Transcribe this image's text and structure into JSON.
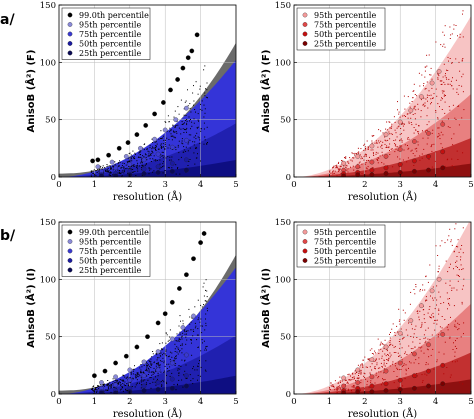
{
  "figure": {
    "row_labels": [
      "a/",
      "b/"
    ]
  },
  "chart_data": [
    {
      "id": "a-left",
      "type": "scatter",
      "title": "",
      "xlabel": "resolution (Å)",
      "ylabel": "AnisoB (Å²) (F)",
      "xlim": [
        0,
        5
      ],
      "ylim": [
        0,
        150
      ],
      "xticks": [
        0,
        1,
        2,
        3,
        4,
        5
      ],
      "yticks": [
        0,
        50,
        100,
        150
      ],
      "grid": true,
      "legend_position": "top-left",
      "background_color": "#ffffff",
      "scatter_cloud": {
        "color": "#000000",
        "x_range": [
          0.9,
          4.2
        ],
        "spread": 0.55,
        "curve": [
          3,
          2.6,
          2.35
        ]
      },
      "bands": [
        {
          "color": "#6b6b6b",
          "curve": [
            3,
            2.6,
            2.35
          ]
        },
        {
          "color": "#3434d8",
          "curve": [
            0,
            4.8,
            1.9
          ]
        },
        {
          "color": "#2020b0",
          "curve": [
            0,
            2.2,
            1.9
          ]
        },
        {
          "color": "#0e0e82",
          "curve": [
            0,
            0.7,
            1.9
          ]
        }
      ],
      "series": [
        {
          "name": "99.0th percentile",
          "color": "#000000",
          "points": [
            [
              0.95,
              14
            ],
            [
              1.1,
              15
            ],
            [
              1.4,
              19
            ],
            [
              1.7,
              25
            ],
            [
              1.95,
              30
            ],
            [
              2.2,
              37
            ],
            [
              2.45,
              45
            ],
            [
              2.7,
              55
            ],
            [
              2.95,
              65
            ],
            [
              3.15,
              76
            ],
            [
              3.35,
              85
            ],
            [
              3.5,
              95
            ],
            [
              3.65,
              104
            ],
            [
              3.75,
              110
            ],
            [
              3.9,
              124
            ]
          ]
        },
        {
          "name": "95th percentile",
          "color": "#8a8ad8",
          "points": [
            [
              1.1,
              9
            ],
            [
              1.5,
              13
            ],
            [
              1.9,
              18
            ],
            [
              2.3,
              25
            ],
            [
              2.7,
              33
            ],
            [
              3.0,
              41
            ],
            [
              3.3,
              50
            ],
            [
              3.6,
              60
            ]
          ]
        },
        {
          "name": "75th percentile",
          "color": "#3a3ad0",
          "points": [
            [
              1.2,
              5
            ],
            [
              1.6,
              8
            ],
            [
              2.0,
              11
            ],
            [
              2.4,
              15
            ],
            [
              2.8,
              20
            ],
            [
              3.2,
              26
            ],
            [
              3.6,
              32
            ]
          ]
        },
        {
          "name": "50th percentile",
          "color": "#1a1aa0",
          "points": [
            [
              1.2,
              2
            ],
            [
              1.6,
              3
            ],
            [
              2.0,
              5
            ],
            [
              2.4,
              7
            ],
            [
              2.8,
              9
            ],
            [
              3.2,
              12
            ],
            [
              3.6,
              15
            ]
          ]
        },
        {
          "name": "25th percentile",
          "color": "#0a0a55",
          "points": [
            [
              1.2,
              1
            ],
            [
              1.6,
              1
            ],
            [
              2.0,
              2
            ],
            [
              2.4,
              3
            ],
            [
              2.8,
              4
            ],
            [
              3.2,
              5
            ],
            [
              3.6,
              6
            ]
          ]
        }
      ]
    },
    {
      "id": "a-right",
      "type": "scatter",
      "title": "",
      "xlabel": "resolution (Å)",
      "ylabel": "AnisoB (Å²) (F)",
      "xlim": [
        0,
        5
      ],
      "ylim": [
        0,
        150
      ],
      "xticks": [
        0,
        1,
        2,
        3,
        4,
        5
      ],
      "yticks": [
        0,
        50,
        100,
        150
      ],
      "grid": true,
      "legend_position": "top-left",
      "background_color": "#ffffff",
      "scatter_cloud": {
        "color": "#b30000",
        "x_range": [
          1.0,
          4.8
        ],
        "spread": 0.5,
        "curve": [
          0,
          6.6,
          1.9
        ]
      },
      "bands": [
        {
          "color": "#f7c4c4",
          "curve": [
            0,
            6.6,
            1.9
          ]
        },
        {
          "color": "#e88080",
          "curve": [
            0,
            3.4,
            1.9
          ]
        },
        {
          "color": "#c23030",
          "curve": [
            0,
            1.6,
            1.9
          ]
        },
        {
          "color": "#8e1010",
          "curve": [
            0,
            0.55,
            1.9
          ]
        }
      ],
      "series": [
        {
          "name": "95th percentile",
          "color": "#f49a9a",
          "points": [
            [
              1.4,
              12
            ],
            [
              1.8,
              18
            ],
            [
              2.2,
              27
            ],
            [
              2.6,
              37
            ],
            [
              3.0,
              48
            ],
            [
              3.3,
              58
            ],
            [
              3.6,
              70
            ],
            [
              3.9,
              82
            ],
            [
              4.1,
              92
            ]
          ]
        },
        {
          "name": "75th percentile",
          "color": "#e04848",
          "points": [
            [
              1.4,
              6
            ],
            [
              1.8,
              9
            ],
            [
              2.2,
              13
            ],
            [
              2.6,
              18
            ],
            [
              3.0,
              24
            ],
            [
              3.4,
              31
            ],
            [
              3.8,
              38
            ],
            [
              4.2,
              46
            ]
          ]
        },
        {
          "name": "50th percentile",
          "color": "#c41010",
          "points": [
            [
              1.4,
              3
            ],
            [
              1.8,
              4
            ],
            [
              2.2,
              6
            ],
            [
              2.6,
              8
            ],
            [
              3.0,
              11
            ],
            [
              3.4,
              14
            ],
            [
              3.8,
              18
            ],
            [
              4.2,
              22
            ]
          ]
        },
        {
          "name": "25th percentile",
          "color": "#7a0000",
          "points": [
            [
              1.4,
              1
            ],
            [
              1.8,
              2
            ],
            [
              2.2,
              2
            ],
            [
              2.6,
              3
            ],
            [
              3.0,
              4
            ],
            [
              3.4,
              5
            ],
            [
              3.8,
              6
            ],
            [
              4.2,
              8
            ]
          ]
        }
      ]
    },
    {
      "id": "b-left",
      "type": "scatter",
      "title": "",
      "xlabel": "resolution (Å)",
      "ylabel": "AnisoB (Å²) (I)",
      "xlim": [
        0,
        5
      ],
      "ylim": [
        0,
        150
      ],
      "xticks": [
        0,
        1,
        2,
        3,
        4,
        5
      ],
      "yticks": [
        0,
        50,
        100,
        150
      ],
      "grid": true,
      "legend_position": "top-left",
      "background_color": "#ffffff",
      "scatter_cloud": {
        "color": "#000000",
        "x_range": [
          0.9,
          4.2
        ],
        "spread": 0.55,
        "curve": [
          3,
          2.7,
          2.35
        ]
      },
      "bands": [
        {
          "color": "#6b6b6b",
          "curve": [
            3,
            2.7,
            2.35
          ]
        },
        {
          "color": "#3434d8",
          "curve": [
            0,
            5.2,
            1.9
          ]
        },
        {
          "color": "#2020b0",
          "curve": [
            0,
            2.4,
            1.9
          ]
        },
        {
          "color": "#0e0e82",
          "curve": [
            0,
            0.75,
            1.9
          ]
        }
      ],
      "series": [
        {
          "name": "99.0th percentile",
          "color": "#000000",
          "points": [
            [
              1.0,
              16
            ],
            [
              1.3,
              20
            ],
            [
              1.6,
              27
            ],
            [
              1.9,
              33
            ],
            [
              2.2,
              41
            ],
            [
              2.5,
              50
            ],
            [
              2.8,
              62
            ],
            [
              3.0,
              70
            ],
            [
              3.2,
              80
            ],
            [
              3.4,
              92
            ],
            [
              3.6,
              104
            ],
            [
              3.8,
              118
            ],
            [
              4.0,
              132
            ],
            [
              4.1,
              140
            ]
          ]
        },
        {
          "name": "95th percentile",
          "color": "#8a8ad8",
          "points": [
            [
              1.2,
              10
            ],
            [
              1.6,
              15
            ],
            [
              2.0,
              21
            ],
            [
              2.4,
              28
            ],
            [
              2.8,
              37
            ],
            [
              3.2,
              48
            ],
            [
              3.5,
              58
            ],
            [
              3.8,
              68
            ]
          ]
        },
        {
          "name": "75th percentile",
          "color": "#3a3ad0",
          "points": [
            [
              1.2,
              5
            ],
            [
              1.6,
              8
            ],
            [
              2.0,
              12
            ],
            [
              2.4,
              16
            ],
            [
              2.8,
              21
            ],
            [
              3.2,
              27
            ],
            [
              3.6,
              34
            ]
          ]
        },
        {
          "name": "50th percentile",
          "color": "#1a1aa0",
          "points": [
            [
              1.2,
              2
            ],
            [
              1.6,
              3
            ],
            [
              2.0,
              5
            ],
            [
              2.4,
              7
            ],
            [
              2.8,
              10
            ],
            [
              3.2,
              13
            ],
            [
              3.6,
              16
            ]
          ]
        },
        {
          "name": "25th percentile",
          "color": "#0a0a55",
          "points": [
            [
              1.2,
              1
            ],
            [
              1.6,
              1
            ],
            [
              2.0,
              2
            ],
            [
              2.4,
              3
            ],
            [
              2.8,
              4
            ],
            [
              3.2,
              5
            ],
            [
              3.6,
              7
            ]
          ]
        }
      ]
    },
    {
      "id": "b-right",
      "type": "scatter",
      "title": "",
      "xlabel": "resolution (Å)",
      "ylabel": "AnisoB (Å²) (I)",
      "xlim": [
        0,
        5
      ],
      "ylim": [
        0,
        150
      ],
      "xticks": [
        0,
        1,
        2,
        3,
        4,
        5
      ],
      "yticks": [
        0,
        50,
        100,
        150
      ],
      "grid": true,
      "legend_position": "top-left",
      "background_color": "#ffffff",
      "scatter_cloud": {
        "color": "#b30000",
        "x_range": [
          1.0,
          4.8
        ],
        "spread": 0.5,
        "curve": [
          0,
          7.2,
          1.9
        ]
      },
      "bands": [
        {
          "color": "#f7c4c4",
          "curve": [
            0,
            7.2,
            1.9
          ]
        },
        {
          "color": "#e88080",
          "curve": [
            0,
            3.7,
            1.9
          ]
        },
        {
          "color": "#c23030",
          "curve": [
            0,
            1.7,
            1.9
          ]
        },
        {
          "color": "#8e1010",
          "curve": [
            0,
            0.6,
            1.9
          ]
        }
      ],
      "series": [
        {
          "name": "95th percentile",
          "color": "#f49a9a",
          "points": [
            [
              1.4,
              14
            ],
            [
              1.8,
              21
            ],
            [
              2.2,
              30
            ],
            [
              2.6,
              41
            ],
            [
              3.0,
              53
            ],
            [
              3.3,
              64
            ],
            [
              3.6,
              77
            ],
            [
              3.9,
              90
            ],
            [
              4.1,
              100
            ]
          ]
        },
        {
          "name": "75th percentile",
          "color": "#e04848",
          "points": [
            [
              1.4,
              7
            ],
            [
              1.8,
              10
            ],
            [
              2.2,
              15
            ],
            [
              2.6,
              20
            ],
            [
              3.0,
              27
            ],
            [
              3.4,
              35
            ],
            [
              3.8,
              43
            ],
            [
              4.2,
              52
            ]
          ]
        },
        {
          "name": "50th percentile",
          "color": "#c41010",
          "points": [
            [
              1.4,
              3
            ],
            [
              1.8,
              5
            ],
            [
              2.2,
              7
            ],
            [
              2.6,
              9
            ],
            [
              3.0,
              12
            ],
            [
              3.4,
              16
            ],
            [
              3.8,
              20
            ],
            [
              4.2,
              25
            ]
          ]
        },
        {
          "name": "25th percentile",
          "color": "#7a0000",
          "points": [
            [
              1.4,
              1
            ],
            [
              1.8,
              2
            ],
            [
              2.2,
              2
            ],
            [
              2.6,
              3
            ],
            [
              3.0,
              4
            ],
            [
              3.4,
              5
            ],
            [
              3.8,
              7
            ],
            [
              4.2,
              9
            ]
          ]
        }
      ]
    }
  ]
}
